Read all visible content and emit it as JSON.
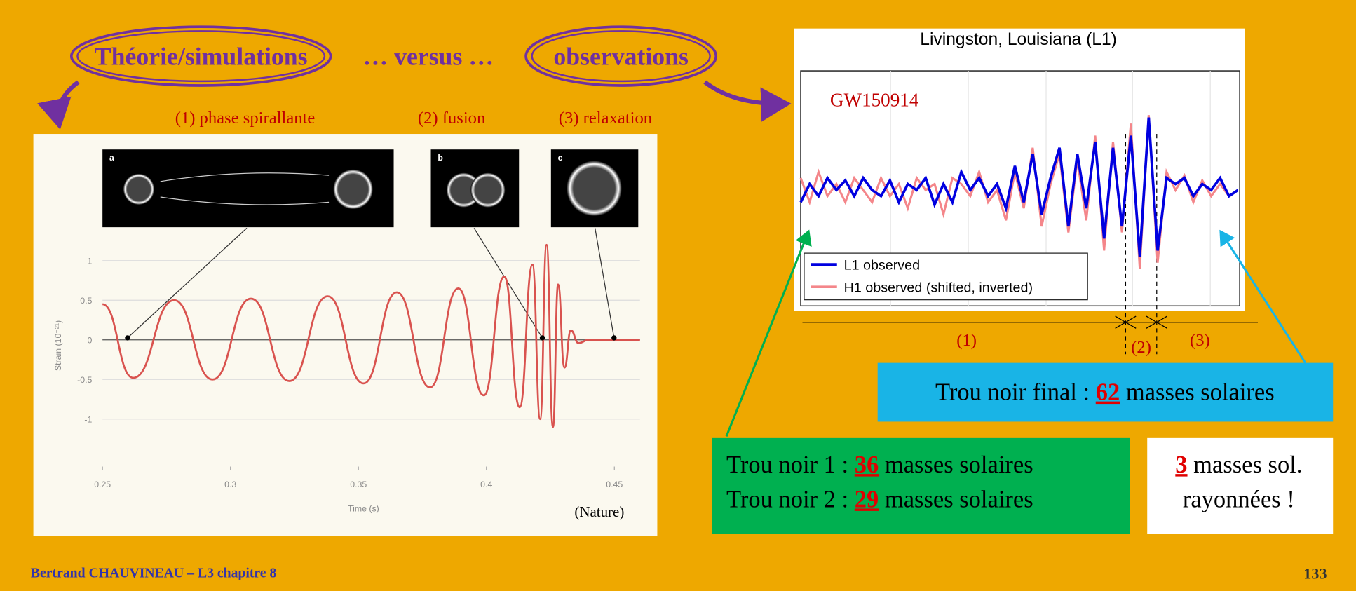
{
  "header": {
    "theory": "Théorie/simulations",
    "versus": "… versus …",
    "observations": "observations"
  },
  "phases": [
    "(1) phase spirallante",
    "(2) fusion",
    "(3) relaxation"
  ],
  "simulation_chart": {
    "type": "line",
    "x_label": "Time (s)",
    "y_label": "Strain (10⁻²¹)",
    "panel_labels": [
      "a",
      "b",
      "c"
    ],
    "source": "(Nature)",
    "x": [
      0.25,
      0.262,
      0.278,
      0.293,
      0.308,
      0.323,
      0.338,
      0.352,
      0.365,
      0.378,
      0.389,
      0.399,
      0.407,
      0.413,
      0.418,
      0.421,
      0.4235,
      0.426,
      0.428,
      0.4305,
      0.433,
      0.436,
      0.44,
      0.46
    ],
    "values": [
      0.45,
      -0.48,
      0.5,
      -0.5,
      0.52,
      -0.52,
      0.55,
      -0.55,
      0.6,
      -0.6,
      0.65,
      -0.7,
      0.8,
      -0.85,
      0.95,
      -1.0,
      1.2,
      -1.1,
      0.7,
      -0.35,
      0.12,
      -0.04,
      0,
      0
    ],
    "color": "#d9534f",
    "xlim": [
      0.25,
      0.46
    ],
    "ylim": [
      -1.6,
      1.4
    ],
    "xticks": [
      0.25,
      0.3,
      0.35,
      0.4,
      0.45
    ],
    "yticks": [
      1,
      0.5,
      0,
      -0.5,
      -1
    ],
    "grid": true
  },
  "observation_chart": {
    "type": "line",
    "title": "Livingston, Louisiana (L1)",
    "annotation": "GW150914",
    "ylim": [
      -1,
      1
    ],
    "series": [
      {
        "name": "L1 observed",
        "color": "#0000e0",
        "values": [
          -0.1,
          0.05,
          -0.05,
          0.1,
          0.0,
          0.08,
          -0.05,
          0.1,
          0.0,
          -0.05,
          0.08,
          -0.1,
          0.05,
          0.0,
          0.1,
          -0.12,
          0.05,
          -0.1,
          0.15,
          0.0,
          0.1,
          -0.05,
          0.05,
          -0.15,
          0.2,
          -0.1,
          0.3,
          -0.2,
          0.1,
          0.35,
          -0.3,
          0.3,
          -0.15,
          0.4,
          -0.4,
          0.35,
          -0.3,
          0.45,
          -0.55,
          0.6,
          -0.5,
          0.1,
          0.05,
          0.1,
          -0.05,
          0.05,
          0.0,
          0.1,
          -0.05,
          0.0
        ]
      },
      {
        "name": "H1 observed (shifted, inverted)",
        "color": "#f4868a",
        "values": [
          0.1,
          -0.1,
          0.15,
          -0.05,
          0.05,
          -0.1,
          0.1,
          0.0,
          -0.1,
          0.1,
          -0.05,
          0.05,
          -0.15,
          0.1,
          0.0,
          0.05,
          -0.2,
          0.1,
          0.05,
          -0.05,
          0.15,
          -0.1,
          0.0,
          -0.25,
          0.15,
          -0.15,
          0.35,
          -0.3,
          0.05,
          0.3,
          -0.35,
          0.25,
          -0.25,
          0.45,
          -0.5,
          0.4,
          -0.35,
          0.55,
          -0.65,
          0.62,
          -0.6,
          0.15,
          0.0,
          0.12,
          -0.1,
          0.08,
          -0.05,
          0.05,
          -0.05,
          0.0
        ]
      }
    ],
    "phase_labels": [
      "(1)",
      "(2)",
      "(3)"
    ]
  },
  "boxes": {
    "final": {
      "prefix": "Trou noir final : ",
      "mass": 62,
      "suffix": " masses solaires"
    },
    "bh1": {
      "prefix": "Trou noir 1 : ",
      "mass": 36,
      "suffix": " masses solaires"
    },
    "bh2": {
      "prefix": "Trou noir 2 : ",
      "mass": 29,
      "suffix": " masses solaires"
    },
    "radiated": {
      "mass": 3,
      "line1": " masses sol.",
      "line2": "rayonnées !"
    }
  },
  "footer": {
    "author": "Bertrand CHAUVINEAU – L3 chapitre 8",
    "page": 133
  }
}
